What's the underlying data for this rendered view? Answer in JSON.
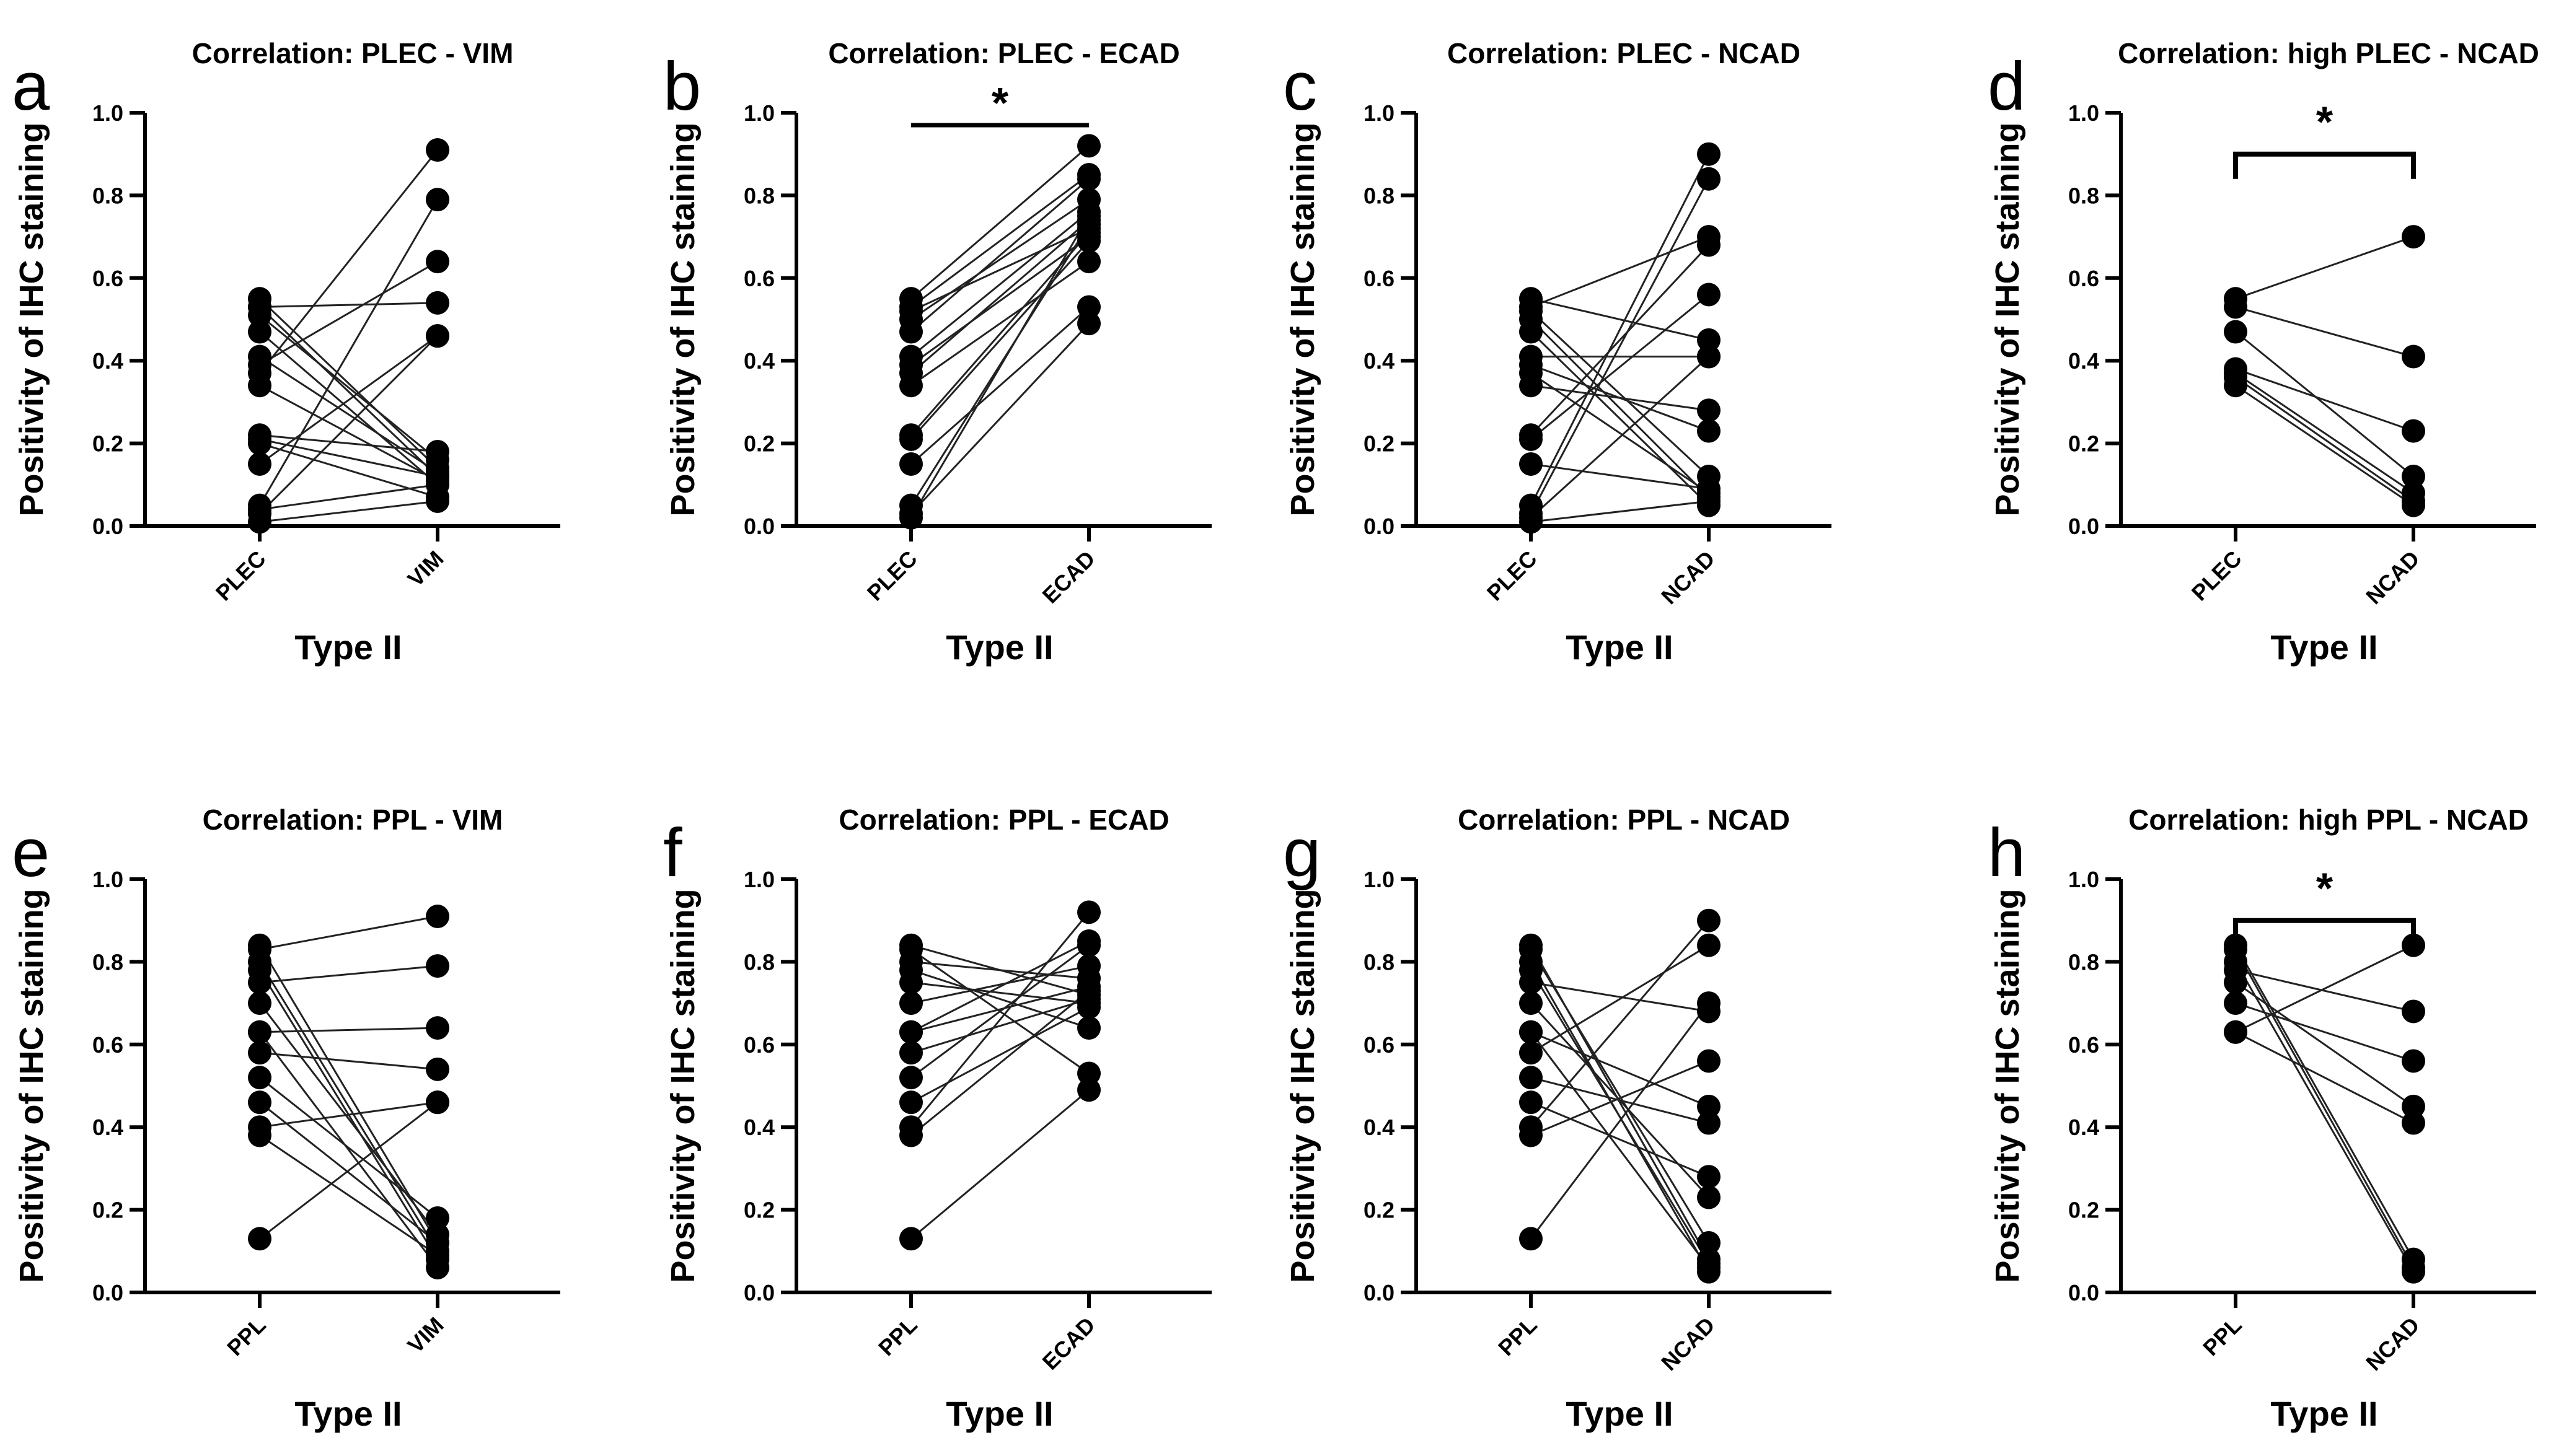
{
  "chart_data": [
    {
      "type": "line",
      "letter": "a",
      "title": "Correlation: PLEC - VIM",
      "categories": [
        "PLEC",
        "VIM"
      ],
      "xlabel": "Type II",
      "ylabel": "Positivity of IHC staining",
      "ylim": [
        0,
        1
      ],
      "yticks": [
        "0.0",
        "0.2",
        "0.4",
        "0.6",
        "0.8",
        "1.0"
      ],
      "significance": "",
      "pairs": [
        [
          0.55,
          0.14
        ],
        [
          0.53,
          0.54
        ],
        [
          0.53,
          0.12
        ],
        [
          0.51,
          0.16
        ],
        [
          0.47,
          0.1
        ],
        [
          0.41,
          0.13
        ],
        [
          0.39,
          0.64
        ],
        [
          0.37,
          0.91
        ],
        [
          0.34,
          0.11
        ],
        [
          0.22,
          0.18
        ],
        [
          0.21,
          0.12
        ],
        [
          0.2,
          0.07
        ],
        [
          0.15,
          0.46
        ],
        [
          0.05,
          0.79
        ],
        [
          0.03,
          0.46
        ],
        [
          0.04,
          0.1
        ],
        [
          0.01,
          0.06
        ]
      ]
    },
    {
      "type": "line",
      "letter": "b",
      "title": "Correlation: PLEC - ECAD",
      "categories": [
        "PLEC",
        "ECAD"
      ],
      "xlabel": "Type II",
      "ylabel": "Positivity of IHC staining",
      "ylim": [
        0,
        1
      ],
      "yticks": [
        "0.0",
        "0.2",
        "0.4",
        "0.6",
        "0.8",
        "1.0"
      ],
      "significance": "*",
      "pairs": [
        [
          0.55,
          0.92
        ],
        [
          0.53,
          0.85
        ],
        [
          0.52,
          0.72
        ],
        [
          0.5,
          0.79
        ],
        [
          0.47,
          0.84
        ],
        [
          0.41,
          0.76
        ],
        [
          0.39,
          0.7
        ],
        [
          0.37,
          0.74
        ],
        [
          0.34,
          0.64
        ],
        [
          0.22,
          0.71
        ],
        [
          0.21,
          0.69
        ],
        [
          0.15,
          0.53
        ],
        [
          0.05,
          0.73
        ],
        [
          0.03,
          0.49
        ],
        [
          0.02,
          0.75
        ]
      ]
    },
    {
      "type": "line",
      "letter": "c",
      "title": "Correlation: PLEC - NCAD",
      "categories": [
        "PLEC",
        "NCAD"
      ],
      "xlabel": "Type II",
      "ylabel": "Positivity of IHC staining",
      "ylim": [
        0,
        1
      ],
      "yticks": [
        "0.0",
        "0.2",
        "0.4",
        "0.6",
        "0.8",
        "1.0"
      ],
      "significance": "",
      "pairs": [
        [
          0.55,
          0.45
        ],
        [
          0.53,
          0.7
        ],
        [
          0.52,
          0.12
        ],
        [
          0.5,
          0.07
        ],
        [
          0.47,
          0.05
        ],
        [
          0.41,
          0.41
        ],
        [
          0.39,
          0.23
        ],
        [
          0.37,
          0.08
        ],
        [
          0.34,
          0.28
        ],
        [
          0.22,
          0.68
        ],
        [
          0.21,
          0.56
        ],
        [
          0.15,
          0.09
        ],
        [
          0.05,
          0.9
        ],
        [
          0.03,
          0.84
        ],
        [
          0.02,
          0.41
        ],
        [
          0.01,
          0.06
        ]
      ]
    },
    {
      "type": "line",
      "letter": "d",
      "title": "Correlation: high PLEC - NCAD",
      "categories": [
        "PLEC",
        "NCAD"
      ],
      "xlabel": "Type II",
      "ylabel": "Positivity of IHC staining",
      "ylim": [
        0,
        1
      ],
      "yticks": [
        "0.0",
        "0.2",
        "0.4",
        "0.6",
        "0.8",
        "1.0"
      ],
      "significance": "*",
      "pairs": [
        [
          0.55,
          0.7
        ],
        [
          0.53,
          0.41
        ],
        [
          0.47,
          0.12
        ],
        [
          0.38,
          0.23
        ],
        [
          0.37,
          0.08
        ],
        [
          0.36,
          0.06
        ],
        [
          0.34,
          0.05
        ]
      ]
    },
    {
      "type": "line",
      "letter": "e",
      "title": "Correlation: PPL - VIM",
      "categories": [
        "PPL",
        "VIM"
      ],
      "xlabel": "Type II",
      "ylabel": "Positivity of IHC staining",
      "ylim": [
        0,
        1
      ],
      "yticks": [
        "0.0",
        "0.2",
        "0.4",
        "0.6",
        "0.8",
        "1.0"
      ],
      "significance": "",
      "pairs": [
        [
          0.84,
          0.12
        ],
        [
          0.83,
          0.91
        ],
        [
          0.8,
          0.1
        ],
        [
          0.78,
          0.08
        ],
        [
          0.75,
          0.79
        ],
        [
          0.7,
          0.14
        ],
        [
          0.63,
          0.64
        ],
        [
          0.63,
          0.06
        ],
        [
          0.58,
          0.54
        ],
        [
          0.52,
          0.18
        ],
        [
          0.46,
          0.12
        ],
        [
          0.4,
          0.46
        ],
        [
          0.38,
          0.09
        ],
        [
          0.13,
          0.46
        ]
      ]
    },
    {
      "type": "line",
      "letter": "f",
      "title": "Correlation:  PPL - ECAD",
      "categories": [
        "PPL",
        "ECAD"
      ],
      "xlabel": "Type II",
      "ylabel": "Positivity of IHC staining",
      "ylim": [
        0,
        1
      ],
      "yticks": [
        "0.0",
        "0.2",
        "0.4",
        "0.6",
        "0.8",
        "1.0"
      ],
      "significance": "",
      "pairs": [
        [
          0.84,
          0.72
        ],
        [
          0.83,
          0.53
        ],
        [
          0.8,
          0.76
        ],
        [
          0.78,
          0.64
        ],
        [
          0.75,
          0.7
        ],
        [
          0.7,
          0.79
        ],
        [
          0.63,
          0.74
        ],
        [
          0.63,
          0.85
        ],
        [
          0.58,
          0.71
        ],
        [
          0.52,
          0.84
        ],
        [
          0.46,
          0.69
        ],
        [
          0.4,
          0.92
        ],
        [
          0.38,
          0.73
        ],
        [
          0.13,
          0.49
        ]
      ]
    },
    {
      "type": "line",
      "letter": "g",
      "title": "Correlation: PPL - NCAD",
      "categories": [
        "PPL",
        "NCAD"
      ],
      "xlabel": "Type II",
      "ylabel": "Positivity of IHC staining",
      "ylim": [
        0,
        1
      ],
      "yticks": [
        "0.0",
        "0.2",
        "0.4",
        "0.6",
        "0.8",
        "1.0"
      ],
      "significance": "",
      "pairs": [
        [
          0.84,
          0.08
        ],
        [
          0.83,
          0.12
        ],
        [
          0.8,
          0.05
        ],
        [
          0.78,
          0.07
        ],
        [
          0.75,
          0.68
        ],
        [
          0.7,
          0.23
        ],
        [
          0.63,
          0.45
        ],
        [
          0.63,
          0.06
        ],
        [
          0.58,
          0.84
        ],
        [
          0.52,
          0.41
        ],
        [
          0.46,
          0.28
        ],
        [
          0.4,
          0.9
        ],
        [
          0.38,
          0.56
        ],
        [
          0.13,
          0.7
        ]
      ]
    },
    {
      "type": "line",
      "letter": "h",
      "title": "Correlation: high PPL - NCAD",
      "categories": [
        "PPL",
        "NCAD"
      ],
      "xlabel": "Type II",
      "ylabel": "Positivity of IHC staining",
      "ylim": [
        0,
        1
      ],
      "yticks": [
        "0.0",
        "0.2",
        "0.4",
        "0.6",
        "0.8",
        "1.0"
      ],
      "significance": "*",
      "pairs": [
        [
          0.84,
          0.08
        ],
        [
          0.83,
          0.06
        ],
        [
          0.8,
          0.05
        ],
        [
          0.78,
          0.68
        ],
        [
          0.75,
          0.45
        ],
        [
          0.7,
          0.56
        ],
        [
          0.63,
          0.84
        ],
        [
          0.63,
          0.41
        ]
      ]
    }
  ]
}
